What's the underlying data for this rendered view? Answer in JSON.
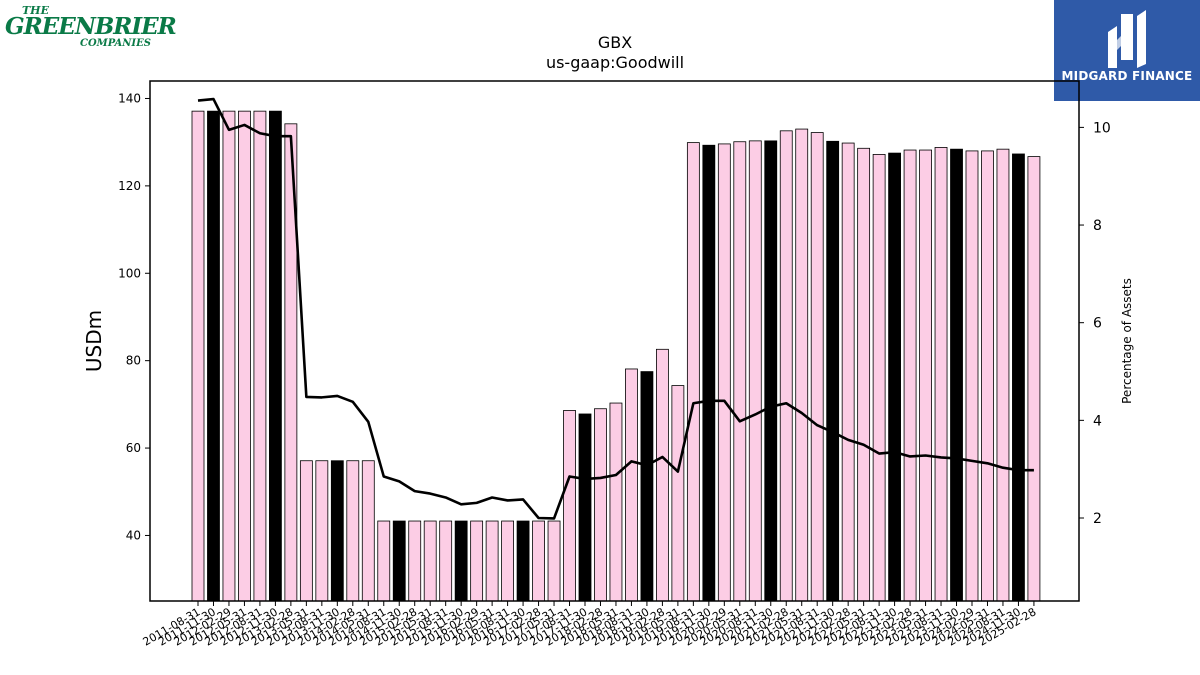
{
  "logos": {
    "left": {
      "the": "THE",
      "main": "GREENBRIER",
      "sub": "COMPANIES"
    },
    "right": {
      "name": "MIDGARD FINANCE"
    }
  },
  "chart_data": {
    "type": "bar",
    "title": "GBX",
    "subtitle": "us-gaap:Goodwill",
    "ylabel": "USDm",
    "y2label": "Percentage of Assets",
    "ylim": [
      25,
      144
    ],
    "y2lim": [
      0.3,
      10.95
    ],
    "yticks": [
      40,
      60,
      80,
      100,
      120,
      140
    ],
    "y2ticks": [
      2,
      4,
      6,
      8,
      10
    ],
    "grid": false,
    "colors": {
      "bar": "#fccde5",
      "bar_highlight": "#000000",
      "line": "#000000"
    },
    "categories": [
      "2011-08-31",
      "2011-11-30",
      "2012-02-29",
      "2012-05-31",
      "2012-08-31",
      "2012-11-30",
      "2013-02-28",
      "2013-05-31",
      "2013-08-31",
      "2013-11-30",
      "2014-02-28",
      "2014-05-31",
      "2014-08-31",
      "2014-11-30",
      "2015-02-28",
      "2015-05-31",
      "2015-08-31",
      "2015-11-30",
      "2016-02-29",
      "2016-05-31",
      "2016-08-31",
      "2016-11-30",
      "2017-02-28",
      "2017-05-31",
      "2017-08-31",
      "2017-11-30",
      "2018-02-28",
      "2018-05-31",
      "2018-08-31",
      "2018-11-30",
      "2019-02-28",
      "2019-05-31",
      "2019-08-31",
      "2019-11-30",
      "2020-02-29",
      "2020-05-31",
      "2020-08-31",
      "2020-11-30",
      "2021-02-28",
      "2021-05-31",
      "2021-08-31",
      "2021-11-30",
      "2022-02-28",
      "2022-05-31",
      "2022-08-31",
      "2022-11-30",
      "2023-02-28",
      "2023-05-31",
      "2023-08-31",
      "2023-11-30",
      "2024-02-29",
      "2024-05-31",
      "2024-08-31",
      "2024-11-30",
      "2025-02-28"
    ],
    "series": [
      {
        "type": "bar",
        "axis": "left",
        "values": [
          137.1,
          137.1,
          137.1,
          137.1,
          137.1,
          137.1,
          134.2,
          57.1,
          57.1,
          57.1,
          57.1,
          57.1,
          43.3,
          43.3,
          43.3,
          43.3,
          43.3,
          43.3,
          43.3,
          43.3,
          43.3,
          43.3,
          43.3,
          43.3,
          68.6,
          67.8,
          69.0,
          70.3,
          78.1,
          77.5,
          82.6,
          74.3,
          129.9,
          129.3,
          129.6,
          130.1,
          130.3,
          130.3,
          132.6,
          133.0,
          132.2,
          130.2,
          129.8,
          128.6,
          127.2,
          127.5,
          128.2,
          128.2,
          128.8,
          128.4,
          128.0,
          128.0,
          128.4,
          127.3,
          126.7
        ],
        "highlight": [
          false,
          true,
          false,
          false,
          false,
          true,
          false,
          false,
          false,
          true,
          false,
          false,
          false,
          true,
          false,
          false,
          false,
          true,
          false,
          false,
          false,
          true,
          false,
          false,
          false,
          true,
          false,
          false,
          false,
          true,
          false,
          false,
          false,
          true,
          false,
          false,
          false,
          true,
          false,
          false,
          false,
          true,
          false,
          false,
          false,
          true,
          false,
          false,
          false,
          true,
          false,
          false,
          false,
          true,
          false
        ]
      },
      {
        "type": "line",
        "axis": "right",
        "values": [
          10.55,
          10.58,
          9.95,
          10.05,
          9.88,
          9.82,
          9.82,
          4.48,
          4.47,
          4.5,
          4.38,
          3.97,
          2.85,
          2.75,
          2.55,
          2.5,
          2.42,
          2.28,
          2.31,
          2.42,
          2.36,
          2.38,
          2.0,
          1.99,
          2.85,
          2.8,
          2.82,
          2.88,
          3.16,
          3.08,
          3.25,
          2.95,
          4.35,
          4.4,
          4.4,
          3.98,
          4.12,
          4.28,
          4.35,
          4.15,
          3.9,
          3.76,
          3.6,
          3.5,
          3.32,
          3.35,
          3.26,
          3.28,
          3.24,
          3.22,
          3.17,
          3.12,
          3.03,
          2.98,
          2.98
        ]
      }
    ]
  }
}
